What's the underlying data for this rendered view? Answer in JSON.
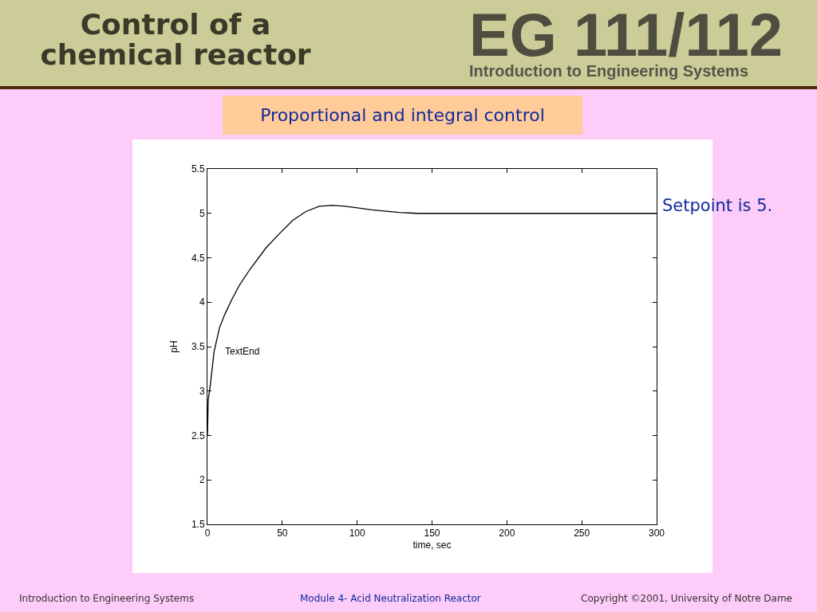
{
  "chart_data": {
    "type": "line",
    "title": "Control of a chemical reactor",
    "subtitle": "Proportional and integral control",
    "xlabel": "time, sec",
    "ylabel": "pH",
    "annotations": [
      "EG 111/112",
      "Introduction to Engineering Systems",
      "TextEnd",
      "Setpoint is 5.",
      "Introduction to Engineering Systems",
      "Module 4- Acid Neutralization Reactor",
      "Copyright ©2001, University of Notre Dame"
    ],
    "x": [
      0,
      0.5,
      1.8,
      4.4,
      8,
      11.5,
      16,
      21.3,
      28.4,
      39,
      48,
      56.8,
      65.7,
      74.6,
      83.5,
      92.3,
      110,
      128,
      140,
      160,
      200,
      250,
      300
    ],
    "series": [
      {
        "color": "#000000",
        "values": [
          2.5,
          2.9,
          3.05,
          3.44,
          3.71,
          3.86,
          4.02,
          4.19,
          4.37,
          4.61,
          4.77,
          4.92,
          5.02,
          5.08,
          5.09,
          5.08,
          5.04,
          5.01,
          5.0,
          5.0,
          5.0,
          5.0,
          5.0
        ]
      }
    ],
    "xlim": [
      0,
      300
    ],
    "xticks": [
      0,
      50,
      100,
      150,
      200,
      250,
      300
    ],
    "ylim": [
      1.5,
      5.5
    ],
    "yticks": [
      1.5,
      2,
      2.5,
      3,
      3.5,
      4,
      4.5,
      5,
      5.5
    ],
    "grid": false,
    "marker": "none",
    "line_style": "solid"
  }
}
